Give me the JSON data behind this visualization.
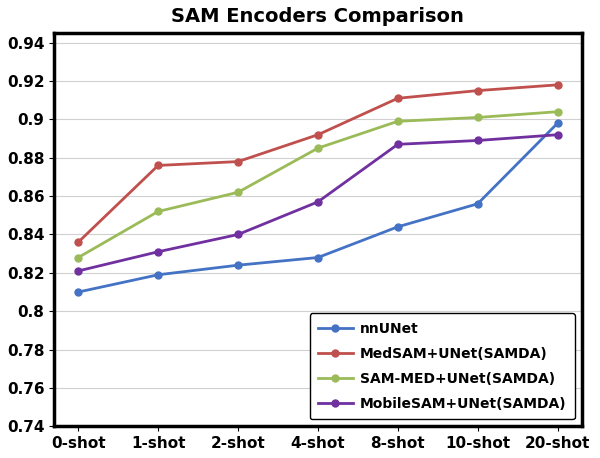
{
  "title": "SAM Encoders Comparison",
  "x_labels": [
    "0-shot",
    "1-shot",
    "2-shot",
    "4-shot",
    "8-shot",
    "10-shot",
    "20-shot"
  ],
  "series": [
    {
      "label": "nnUNet",
      "color": "#4472C4",
      "values": [
        0.81,
        0.819,
        0.824,
        0.828,
        0.844,
        0.856,
        0.898
      ]
    },
    {
      "label": "MedSAM+UNet(SAMDA)",
      "color": "#C0504D",
      "values": [
        0.836,
        0.876,
        0.878,
        0.892,
        0.911,
        0.915,
        0.918
      ]
    },
    {
      "label": "SAM-MED+UNet(SAMDA)",
      "color": "#9BBB59",
      "values": [
        0.828,
        0.852,
        0.862,
        0.885,
        0.899,
        0.901,
        0.904
      ]
    },
    {
      "label": "MobileSAM+UNet(SAMDA)",
      "color": "#7030A0",
      "values": [
        0.821,
        0.831,
        0.84,
        0.857,
        0.887,
        0.889,
        0.892
      ]
    }
  ],
  "ylim": [
    0.74,
    0.945
  ],
  "ytick_values": [
    0.74,
    0.76,
    0.78,
    0.8,
    0.82,
    0.84,
    0.86,
    0.88,
    0.9,
    0.92,
    0.94
  ],
  "ytick_labels": [
    "0.74",
    "0.76",
    "0.78",
    "0.8",
    "0.82",
    "0.84",
    "0.86",
    "0.88",
    "0.9",
    "0.92",
    "0.94"
  ],
  "marker": "o",
  "marker_size": 5,
  "linewidth": 2.0,
  "grid_color": "#d0d0d0",
  "background_color": "#ffffff",
  "title_fontsize": 14,
  "legend_fontsize": 10,
  "tick_fontsize": 11,
  "spine_linewidth": 2.5
}
